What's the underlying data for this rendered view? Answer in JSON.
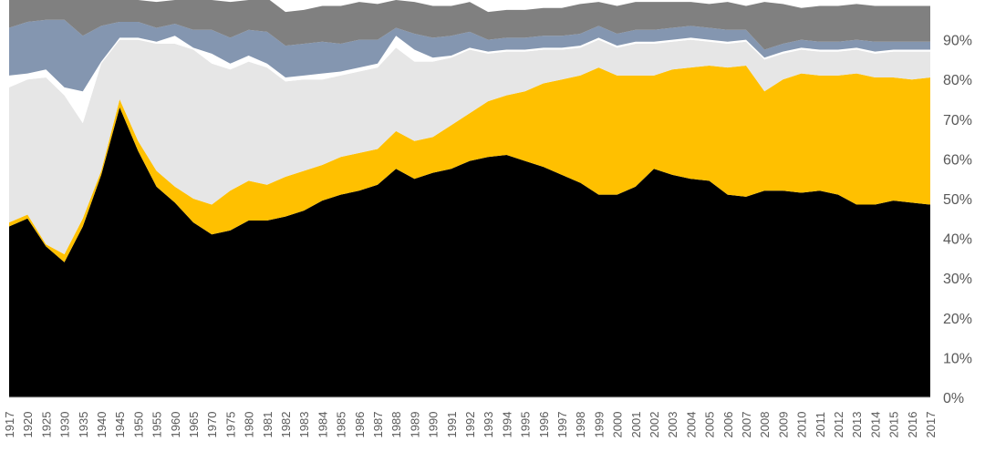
{
  "chart_data": {
    "type": "area",
    "stacked": true,
    "percent": true,
    "ylim": [
      0,
      100
    ],
    "y_ticks": [
      0,
      10,
      20,
      30,
      40,
      50,
      60,
      70,
      80,
      90
    ],
    "y_tick_labels": [
      "0%",
      "10%",
      "20%",
      "30%",
      "40%",
      "50%",
      "60%",
      "70%",
      "80%",
      "90%"
    ],
    "y_axis_position": "right",
    "grid": false,
    "legend": "none",
    "categories": [
      "1917",
      "1920",
      "1925",
      "1930",
      "1935",
      "1940",
      "1945",
      "1950",
      "1955",
      "1960",
      "1965",
      "1970",
      "1975",
      "1980",
      "1981",
      "1982",
      "1983",
      "1984",
      "1985",
      "1986",
      "1987",
      "1988",
      "1989",
      "1990",
      "1991",
      "1992",
      "1993",
      "1994",
      "1995",
      "1996",
      "1997",
      "1998",
      "1999",
      "2000",
      "2001",
      "2002",
      "2003",
      "2004",
      "2005",
      "2006",
      "2007",
      "2008",
      "2009",
      "2010",
      "2011",
      "2012",
      "2013",
      "2014",
      "2015",
      "2016",
      "2017"
    ],
    "series": [
      {
        "color": "#000000",
        "values": [
          43,
          45,
          38,
          34,
          43,
          56,
          73,
          62,
          53,
          49,
          44,
          41,
          42,
          44.5,
          44.5,
          45.5,
          47,
          49.5,
          51,
          52,
          53.5,
          57.5,
          55,
          56.5,
          57.5,
          59.5,
          60.5,
          61,
          59.5,
          58,
          56,
          54,
          51,
          51,
          53,
          57.5,
          56,
          55,
          54.5,
          51,
          50.5,
          52,
          52,
          51.5,
          52,
          51,
          48.5,
          48.5,
          49.5,
          49,
          48.5
        ]
      },
      {
        "color": "#ffc000",
        "values": [
          1,
          1,
          0.5,
          2,
          2,
          1,
          2,
          2.5,
          4,
          4,
          6,
          7.5,
          10,
          10,
          9,
          10,
          10,
          9,
          9.5,
          9.5,
          9,
          9.5,
          9.5,
          9,
          11,
          12,
          14,
          15,
          17.5,
          21,
          24,
          27,
          32,
          30,
          28,
          23.5,
          26.5,
          28,
          29,
          32,
          33,
          25,
          28,
          30,
          29,
          30,
          33,
          32,
          31,
          31,
          32
        ]
      },
      {
        "color": "#e6e6e6",
        "values": [
          34,
          34,
          42,
          40,
          24,
          27,
          15,
          25.5,
          32,
          36,
          37.5,
          35.5,
          30.5,
          30,
          29.5,
          24,
          23,
          21.5,
          20.5,
          20.5,
          20.5,
          21,
          20,
          19,
          17,
          16,
          12,
          11,
          10,
          8.5,
          7.5,
          7,
          7,
          7,
          8,
          8,
          7,
          7,
          6,
          6,
          6,
          8,
          6.5,
          6,
          6,
          6,
          6,
          6,
          6.5,
          7,
          6.5
        ]
      },
      {
        "color": "#ffffff",
        "values": [
          3,
          1.5,
          2,
          2,
          8,
          0.5,
          0.5,
          0.5,
          0.5,
          2,
          0.5,
          2.5,
          1.5,
          1.5,
          1,
          1,
          1,
          1.5,
          1,
          1,
          1,
          3,
          3,
          1,
          0.5,
          0.5,
          0.5,
          0.5,
          0.5,
          0.5,
          0.5,
          0.5,
          0.5,
          0.5,
          0.5,
          0.5,
          0.5,
          0.5,
          0.5,
          0.5,
          0.5,
          0.5,
          0.5,
          0.5,
          0.5,
          0.5,
          0.5,
          0.5,
          0.5,
          0.5,
          0.5
        ]
      },
      {
        "color": "#8496b0",
        "values": [
          12,
          13,
          12.5,
          17,
          14,
          9,
          4,
          4,
          3.5,
          3,
          4.5,
          6,
          6.5,
          6.5,
          8,
          8,
          8,
          8,
          7,
          7,
          6,
          2,
          4,
          5,
          5,
          4,
          3,
          3,
          3,
          3,
          3,
          3,
          3,
          3,
          3,
          3,
          3,
          3,
          3,
          3,
          2.5,
          2,
          2,
          2,
          2,
          2,
          2,
          2.5,
          2,
          2,
          2
        ]
      },
      {
        "color": "#808080",
        "values": [
          7,
          5.5,
          5,
          5,
          9,
          6.5,
          5.5,
          5.5,
          6.5,
          6,
          7.5,
          7.5,
          9,
          7.5,
          8.5,
          8.5,
          8.5,
          9,
          9.5,
          9.5,
          9,
          7,
          8,
          8,
          7.5,
          7.5,
          7,
          7,
          7,
          7,
          7,
          7.5,
          6,
          7,
          7,
          7,
          6.5,
          6,
          6,
          7,
          6,
          12,
          10,
          8,
          9,
          9,
          9,
          9,
          9,
          9,
          9
        ]
      }
    ]
  }
}
